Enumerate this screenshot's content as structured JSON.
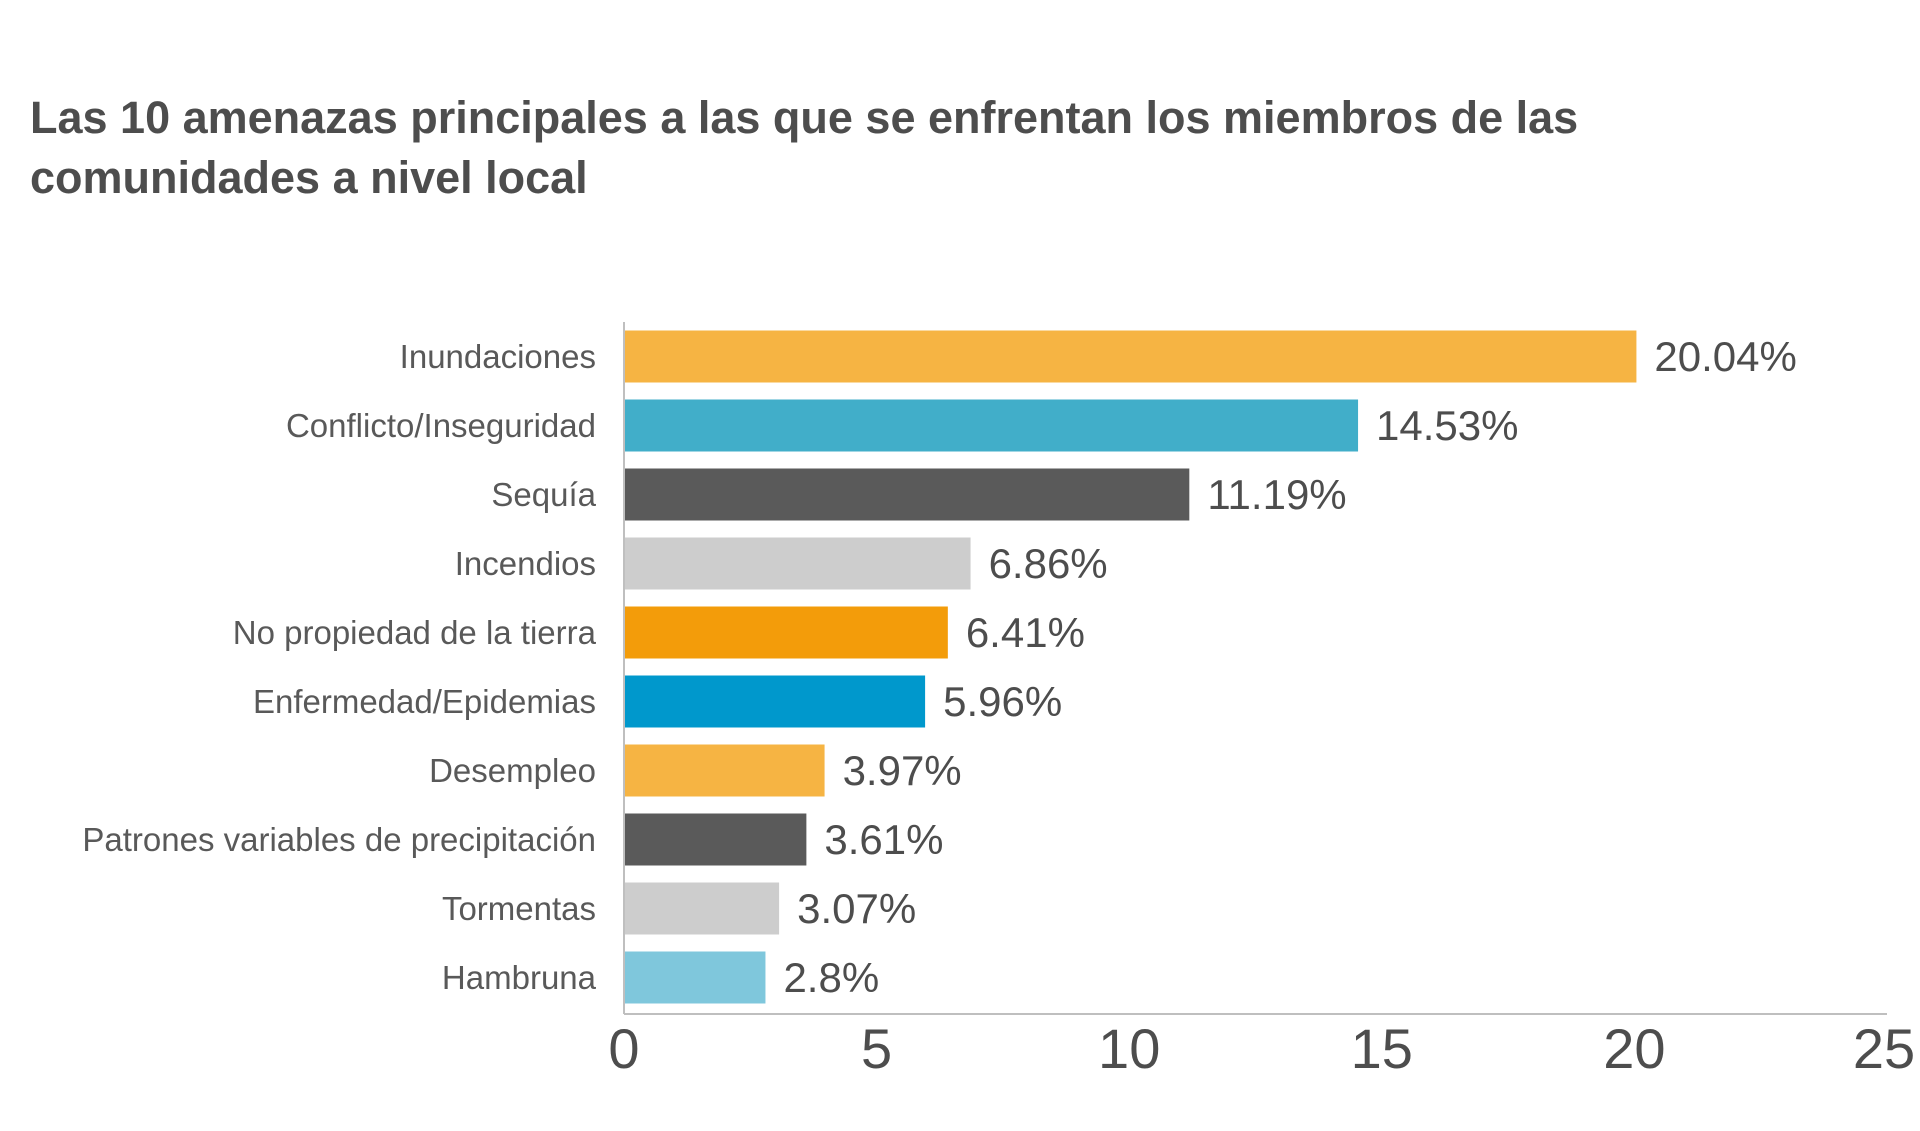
{
  "chart_data": {
    "type": "bar",
    "orientation": "horizontal",
    "title": "Las 10 amenazas principales a las que se enfrentan los miembros de las comunidades a nivel local",
    "categories": [
      "Inundaciones",
      "Conflicto/Inseguridad",
      "Sequía",
      "Incendios",
      "No propiedad de la tierra",
      "Enfermedad/Epidemias",
      "Desempleo",
      "Patrones variables de precipitación",
      "Tormentas",
      "Hambruna"
    ],
    "values": [
      20.04,
      14.53,
      11.19,
      6.86,
      6.41,
      5.96,
      3.97,
      3.61,
      3.07,
      2.8
    ],
    "value_labels": [
      "20.04%",
      "14.53%",
      "11.19%",
      "6.86%",
      "6.41%",
      "5.96%",
      "3.97%",
      "3.61%",
      "3.07%",
      "2.8%"
    ],
    "colors": [
      "#f6b443",
      "#41aec9",
      "#5a5a5a",
      "#cdcdcd",
      "#f39c0a",
      "#0098cc",
      "#f6b443",
      "#5a5a5a",
      "#cdcdcd",
      "#7fc7dc"
    ],
    "xlim": [
      0,
      25
    ],
    "xticks": [
      0,
      5,
      10,
      15,
      20,
      25
    ],
    "xtick_labels": [
      "0",
      "5",
      "10",
      "15",
      "20",
      "25"
    ],
    "xlabel": "",
    "ylabel": "",
    "grid": false,
    "legend": "none"
  }
}
